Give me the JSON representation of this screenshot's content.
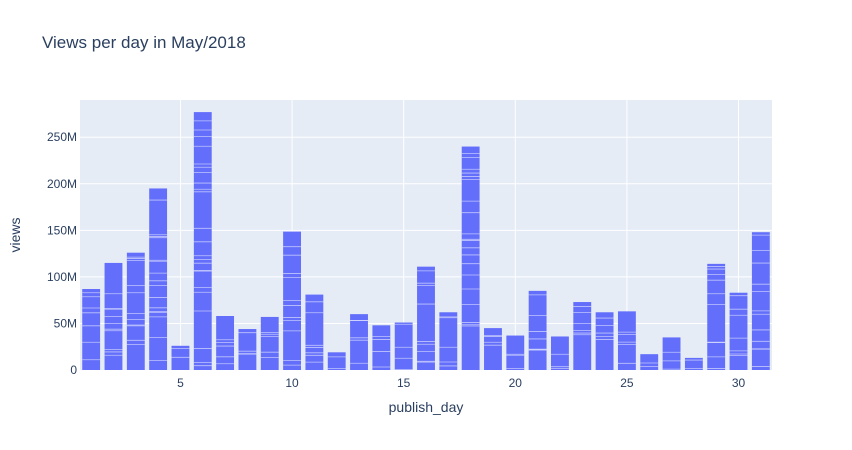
{
  "chart_data": {
    "type": "bar",
    "title": "Views per day in May/2018",
    "xlabel": "publish_day",
    "ylabel": "views",
    "xlim": [
      0.5,
      31.5
    ],
    "ylim": [
      0,
      290000000
    ],
    "x_ticks": [
      5,
      10,
      15,
      20,
      25,
      30
    ],
    "x_tick_labels": [
      "5",
      "10",
      "15",
      "20",
      "25",
      "30"
    ],
    "y_ticks": [
      0,
      50000000,
      100000000,
      150000000,
      200000000,
      250000000
    ],
    "y_tick_labels": [
      "0",
      "50M",
      "100M",
      "150M",
      "200M",
      "250M"
    ],
    "grid": true,
    "barmode": "stack",
    "bar_color": "#636efa",
    "plot_bg": "#e5ecf6",
    "x": [
      1,
      2,
      3,
      4,
      5,
      6,
      7,
      8,
      9,
      10,
      11,
      12,
      13,
      14,
      15,
      16,
      17,
      18,
      19,
      20,
      21,
      22,
      23,
      24,
      25,
      26,
      27,
      28,
      29,
      30,
      31
    ],
    "values": [
      87000000,
      115000000,
      126000000,
      195000000,
      26000000,
      277000000,
      58000000,
      44000000,
      57000000,
      149000000,
      81000000,
      19000000,
      60000000,
      48000000,
      51000000,
      111000000,
      62000000,
      240000000,
      45000000,
      37000000,
      85000000,
      36000000,
      73000000,
      62000000,
      63000000,
      17000000,
      35000000,
      13000000,
      114000000,
      83000000,
      148000000
    ]
  }
}
